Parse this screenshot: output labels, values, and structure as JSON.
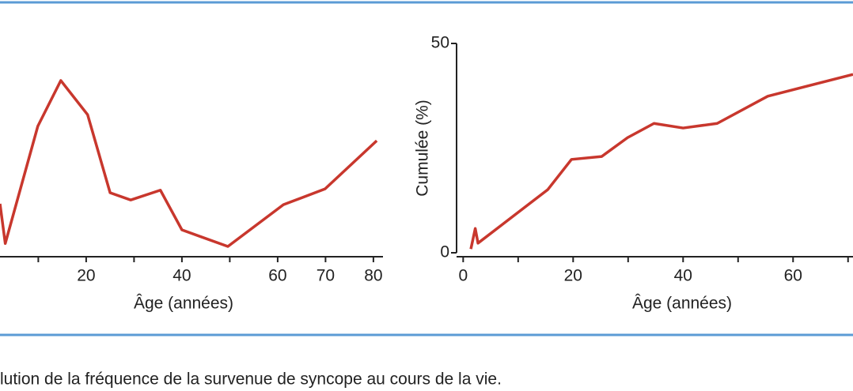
{
  "chart_data": [
    {
      "type": "line",
      "xlabel": "Âge (années)",
      "x": [
        2,
        3.1,
        9.9,
        14.7,
        20.3,
        25,
        29.3,
        35.5,
        40,
        49.6,
        61.2,
        69.9,
        80.7
      ],
      "series": [
        {
          "color": "#c8372d",
          "values": [
            12.4,
            3.1,
            30.6,
            41.3,
            33.3,
            15,
            13.3,
            15.6,
            6.3,
            2.4,
            12.2,
            15.9,
            27.2
          ]
        }
      ],
      "xlim": [
        2,
        82
      ],
      "ylim": [
        0,
        50
      ],
      "xticks": [
        20,
        40,
        60,
        70,
        80
      ],
      "xminor": [
        10,
        30,
        50
      ]
    },
    {
      "type": "line",
      "xlabel": "Âge (années)",
      "ylabel": "Cumulée (%)",
      "x": [
        1.4,
        2.2,
        2.7,
        15.4,
        19.7,
        25.2,
        29.9,
        34.7,
        40,
        46.2,
        55.4,
        70.9
      ],
      "series": [
        {
          "color": "#c8372d",
          "values": [
            0.9,
            5.8,
            2.3,
            15.1,
            22.3,
            23,
            27.5,
            30.9,
            29.8,
            30.9,
            37.4,
            42.6
          ]
        }
      ],
      "xlim": [
        -1.2,
        70.9
      ],
      "ylim": [
        0,
        50
      ],
      "xticks": [
        0,
        20,
        40,
        60
      ],
      "xminor": [
        10,
        30,
        50,
        70
      ],
      "yticks": [
        0,
        50
      ]
    }
  ],
  "caption": "lution de la fréquence de la survenue de syncope au cours de la vie."
}
